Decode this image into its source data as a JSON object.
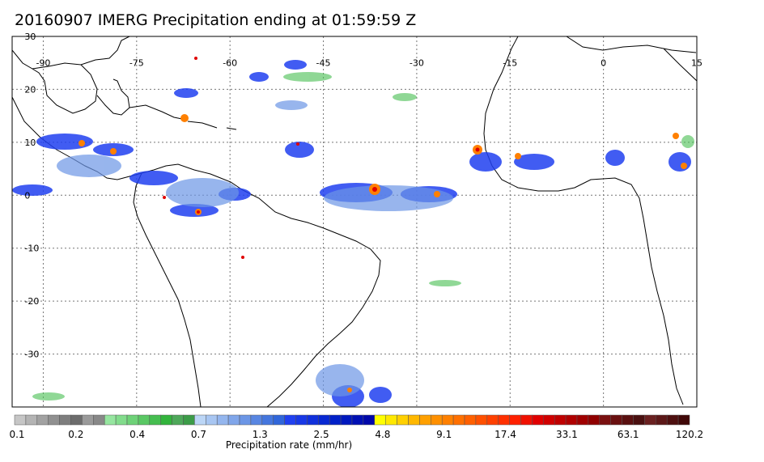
{
  "title": "20160907 IMERG Precipitation ending at 01:59:59 Z",
  "map": {
    "lon_range": [
      -95,
      15
    ],
    "lat_range": [
      -40,
      30
    ],
    "lon_ticks": [
      "-90",
      "-75",
      "-60",
      "-45",
      "-30",
      "-15",
      "0",
      "15"
    ],
    "lat_ticks": [
      "30",
      "20",
      "10",
      "0",
      "-10",
      "-20",
      "-30"
    ],
    "gridlines": true,
    "background_color": "#ffffff",
    "coast_color": "#000000"
  },
  "colorbar": {
    "label": "Precipitation rate (mm/hr)",
    "tick_labels": [
      "0.1",
      "0.2",
      "0.4",
      "0.7",
      "1.3",
      "2.5",
      "4.8",
      "9.1",
      "17.4",
      "33.1",
      "63.1",
      "120.2"
    ],
    "colors": [
      "#c6c6c6",
      "#b4b4b4",
      "#a2a2a2",
      "#909090",
      "#7e7e7e",
      "#6c6c6c",
      "#9a9a9a",
      "#888888",
      "#96e6a0",
      "#82dc8c",
      "#6ed278",
      "#5ac864",
      "#46be50",
      "#32b43c",
      "#4ea85a",
      "#3c9c48",
      "#bcd6f6",
      "#a8c6f2",
      "#94b6ee",
      "#80a6ea",
      "#6c96e6",
      "#5886e2",
      "#4476de",
      "#3066da",
      "#2040f0",
      "#1838e6",
      "#1030dc",
      "#0828d2",
      "#0020c8",
      "#0018be",
      "#0010b4",
      "#0008aa",
      "#ffff00",
      "#ffe800",
      "#ffd000",
      "#ffb800",
      "#ffa000",
      "#ff9000",
      "#ff8000",
      "#ff7000",
      "#ff6000",
      "#ff5000",
      "#ff4000",
      "#ff3000",
      "#ff2000",
      "#f01000",
      "#e00000",
      "#d00000",
      "#c00000",
      "#b00000",
      "#a00000",
      "#900000",
      "#7a1010",
      "#6a1010",
      "#5a1010",
      "#4a1010",
      "#6a2020",
      "#5c1818",
      "#4e1010",
      "#400808"
    ]
  }
}
